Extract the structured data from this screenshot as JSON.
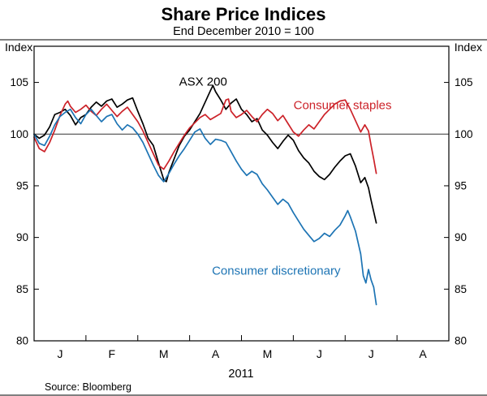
{
  "source": "Source: Bloomberg",
  "chart_data": {
    "type": "line",
    "title": "Share Price Indices",
    "subtitle": "End December 2010 = 100",
    "ylabel_left": "Index",
    "ylabel_right": "Index",
    "xlabel": "2011",
    "ylim": [
      80,
      108.5
    ],
    "yticks": [
      80,
      85,
      90,
      95,
      100,
      105
    ],
    "xlim": [
      0,
      8
    ],
    "xtick_labels": [
      "J",
      "F",
      "M",
      "A",
      "M",
      "J",
      "J",
      "A"
    ],
    "reference_line": 100,
    "grid": "reference line at 100 only",
    "legend_position": "inline annotations",
    "frame_color": "#000000",
    "annotations": [
      {
        "label": "ASX 200",
        "x": 3.26,
        "y": 104.7,
        "color": "#000000"
      },
      {
        "label": "Consumer staples",
        "x": 5.95,
        "y": 102.4,
        "color": "#cc2229"
      },
      {
        "label": "Consumer discretionary",
        "x": 4.67,
        "y": 86.4,
        "color": "#1d74b4"
      }
    ],
    "series": [
      {
        "name": "ASX 200",
        "color": "#000000",
        "points": [
          [
            0,
            100
          ],
          [
            0.1,
            99.6
          ],
          [
            0.2,
            99.9
          ],
          [
            0.3,
            100.7
          ],
          [
            0.4,
            101.9
          ],
          [
            0.5,
            102.1
          ],
          [
            0.6,
            102.4
          ],
          [
            0.7,
            101.8
          ],
          [
            0.8,
            100.9
          ],
          [
            0.9,
            101.6
          ],
          [
            1.0,
            101.9
          ],
          [
            1.1,
            102.6
          ],
          [
            1.2,
            103.1
          ],
          [
            1.3,
            102.7
          ],
          [
            1.4,
            103.2
          ],
          [
            1.5,
            103.4
          ],
          [
            1.6,
            102.6
          ],
          [
            1.7,
            102.9
          ],
          [
            1.8,
            103.3
          ],
          [
            1.9,
            103.5
          ],
          [
            2.0,
            102.2
          ],
          [
            2.1,
            101.0
          ],
          [
            2.2,
            99.6
          ],
          [
            2.3,
            98.9
          ],
          [
            2.4,
            97.2
          ],
          [
            2.5,
            95.6
          ],
          [
            2.55,
            95.4
          ],
          [
            2.6,
            96.3
          ],
          [
            2.7,
            97.6
          ],
          [
            2.8,
            98.9
          ],
          [
            2.9,
            99.8
          ],
          [
            3.0,
            100.4
          ],
          [
            3.1,
            101.2
          ],
          [
            3.2,
            102.0
          ],
          [
            3.3,
            103.1
          ],
          [
            3.4,
            104.2
          ],
          [
            3.45,
            104.7
          ],
          [
            3.5,
            104.1
          ],
          [
            3.6,
            103.3
          ],
          [
            3.7,
            102.4
          ],
          [
            3.8,
            103.0
          ],
          [
            3.9,
            103.4
          ],
          [
            4.0,
            102.4
          ],
          [
            4.1,
            101.9
          ],
          [
            4.2,
            101.2
          ],
          [
            4.3,
            101.5
          ],
          [
            4.4,
            100.4
          ],
          [
            4.5,
            99.9
          ],
          [
            4.6,
            99.2
          ],
          [
            4.7,
            98.6
          ],
          [
            4.8,
            99.3
          ],
          [
            4.9,
            99.9
          ],
          [
            5.0,
            99.4
          ],
          [
            5.1,
            98.4
          ],
          [
            5.2,
            97.7
          ],
          [
            5.3,
            97.2
          ],
          [
            5.4,
            96.4
          ],
          [
            5.5,
            95.9
          ],
          [
            5.6,
            95.6
          ],
          [
            5.7,
            96.1
          ],
          [
            5.8,
            96.8
          ],
          [
            5.9,
            97.4
          ],
          [
            6.0,
            97.9
          ],
          [
            6.1,
            98.1
          ],
          [
            6.2,
            96.9
          ],
          [
            6.3,
            95.3
          ],
          [
            6.38,
            95.8
          ],
          [
            6.45,
            94.8
          ],
          [
            6.5,
            93.6
          ],
          [
            6.55,
            92.5
          ],
          [
            6.6,
            91.4
          ]
        ]
      },
      {
        "name": "Consumer staples",
        "color": "#cc2229",
        "points": [
          [
            0,
            99.7
          ],
          [
            0.1,
            98.6
          ],
          [
            0.2,
            98.3
          ],
          [
            0.3,
            99.2
          ],
          [
            0.4,
            100.4
          ],
          [
            0.5,
            101.8
          ],
          [
            0.6,
            102.9
          ],
          [
            0.65,
            103.2
          ],
          [
            0.7,
            102.7
          ],
          [
            0.8,
            102.1
          ],
          [
            0.9,
            102.4
          ],
          [
            1.0,
            102.8
          ],
          [
            1.1,
            102.2
          ],
          [
            1.2,
            101.8
          ],
          [
            1.3,
            102.4
          ],
          [
            1.4,
            102.9
          ],
          [
            1.5,
            102.3
          ],
          [
            1.6,
            101.7
          ],
          [
            1.7,
            102.2
          ],
          [
            1.8,
            102.6
          ],
          [
            1.9,
            101.9
          ],
          [
            2.0,
            101.2
          ],
          [
            2.1,
            100.3
          ],
          [
            2.2,
            99.2
          ],
          [
            2.3,
            98.1
          ],
          [
            2.4,
            97.0
          ],
          [
            2.5,
            96.6
          ],
          [
            2.6,
            97.4
          ],
          [
            2.7,
            98.3
          ],
          [
            2.8,
            99.1
          ],
          [
            2.9,
            99.9
          ],
          [
            3.0,
            100.6
          ],
          [
            3.1,
            101.1
          ],
          [
            3.2,
            101.6
          ],
          [
            3.3,
            101.9
          ],
          [
            3.4,
            101.4
          ],
          [
            3.5,
            101.7
          ],
          [
            3.6,
            102.0
          ],
          [
            3.7,
            103.3
          ],
          [
            3.75,
            103.4
          ],
          [
            3.8,
            102.2
          ],
          [
            3.9,
            101.6
          ],
          [
            4.0,
            101.9
          ],
          [
            4.1,
            102.3
          ],
          [
            4.2,
            101.7
          ],
          [
            4.3,
            101.2
          ],
          [
            4.4,
            101.9
          ],
          [
            4.5,
            102.4
          ],
          [
            4.6,
            102.0
          ],
          [
            4.7,
            101.3
          ],
          [
            4.8,
            101.8
          ],
          [
            4.9,
            101.0
          ],
          [
            5.0,
            100.2
          ],
          [
            5.1,
            99.8
          ],
          [
            5.2,
            100.4
          ],
          [
            5.3,
            100.9
          ],
          [
            5.4,
            100.5
          ],
          [
            5.5,
            101.2
          ],
          [
            5.6,
            101.9
          ],
          [
            5.7,
            102.4
          ],
          [
            5.8,
            102.9
          ],
          [
            5.9,
            103.2
          ],
          [
            6.0,
            103.3
          ],
          [
            6.1,
            102.4
          ],
          [
            6.2,
            101.3
          ],
          [
            6.3,
            100.2
          ],
          [
            6.38,
            100.9
          ],
          [
            6.45,
            100.3
          ],
          [
            6.5,
            98.9
          ],
          [
            6.55,
            97.6
          ],
          [
            6.6,
            96.2
          ]
        ]
      },
      {
        "name": "Consumer discretionary",
        "color": "#1d74b4",
        "points": [
          [
            0,
            100
          ],
          [
            0.1,
            99.1
          ],
          [
            0.2,
            98.9
          ],
          [
            0.3,
            99.8
          ],
          [
            0.4,
            100.9
          ],
          [
            0.5,
            101.7
          ],
          [
            0.6,
            102.1
          ],
          [
            0.7,
            102.4
          ],
          [
            0.8,
            101.6
          ],
          [
            0.9,
            101.0
          ],
          [
            1.0,
            101.9
          ],
          [
            1.1,
            102.4
          ],
          [
            1.2,
            101.8
          ],
          [
            1.3,
            101.2
          ],
          [
            1.4,
            101.7
          ],
          [
            1.5,
            101.9
          ],
          [
            1.6,
            101.0
          ],
          [
            1.7,
            100.4
          ],
          [
            1.8,
            100.9
          ],
          [
            1.9,
            100.6
          ],
          [
            2.0,
            100.0
          ],
          [
            2.1,
            99.2
          ],
          [
            2.2,
            98.1
          ],
          [
            2.3,
            97.0
          ],
          [
            2.4,
            96.0
          ],
          [
            2.5,
            95.4
          ],
          [
            2.6,
            96.2
          ],
          [
            2.7,
            97.1
          ],
          [
            2.8,
            97.9
          ],
          [
            2.9,
            98.6
          ],
          [
            3.0,
            99.4
          ],
          [
            3.1,
            100.2
          ],
          [
            3.2,
            100.5
          ],
          [
            3.3,
            99.6
          ],
          [
            3.4,
            99.0
          ],
          [
            3.5,
            99.5
          ],
          [
            3.6,
            99.4
          ],
          [
            3.7,
            99.2
          ],
          [
            3.8,
            98.3
          ],
          [
            3.9,
            97.4
          ],
          [
            4.0,
            96.6
          ],
          [
            4.1,
            96.0
          ],
          [
            4.2,
            96.4
          ],
          [
            4.3,
            96.1
          ],
          [
            4.4,
            95.2
          ],
          [
            4.5,
            94.6
          ],
          [
            4.6,
            93.9
          ],
          [
            4.7,
            93.2
          ],
          [
            4.8,
            93.7
          ],
          [
            4.9,
            93.3
          ],
          [
            5.0,
            92.4
          ],
          [
            5.1,
            91.6
          ],
          [
            5.2,
            90.8
          ],
          [
            5.3,
            90.2
          ],
          [
            5.4,
            89.6
          ],
          [
            5.5,
            89.9
          ],
          [
            5.6,
            90.4
          ],
          [
            5.7,
            90.1
          ],
          [
            5.8,
            90.7
          ],
          [
            5.9,
            91.2
          ],
          [
            6.0,
            92.1
          ],
          [
            6.05,
            92.6
          ],
          [
            6.1,
            92.0
          ],
          [
            6.2,
            90.6
          ],
          [
            6.3,
            88.4
          ],
          [
            6.35,
            86.3
          ],
          [
            6.4,
            85.6
          ],
          [
            6.45,
            86.9
          ],
          [
            6.5,
            85.9
          ],
          [
            6.55,
            85.2
          ],
          [
            6.6,
            83.5
          ]
        ]
      }
    ]
  }
}
